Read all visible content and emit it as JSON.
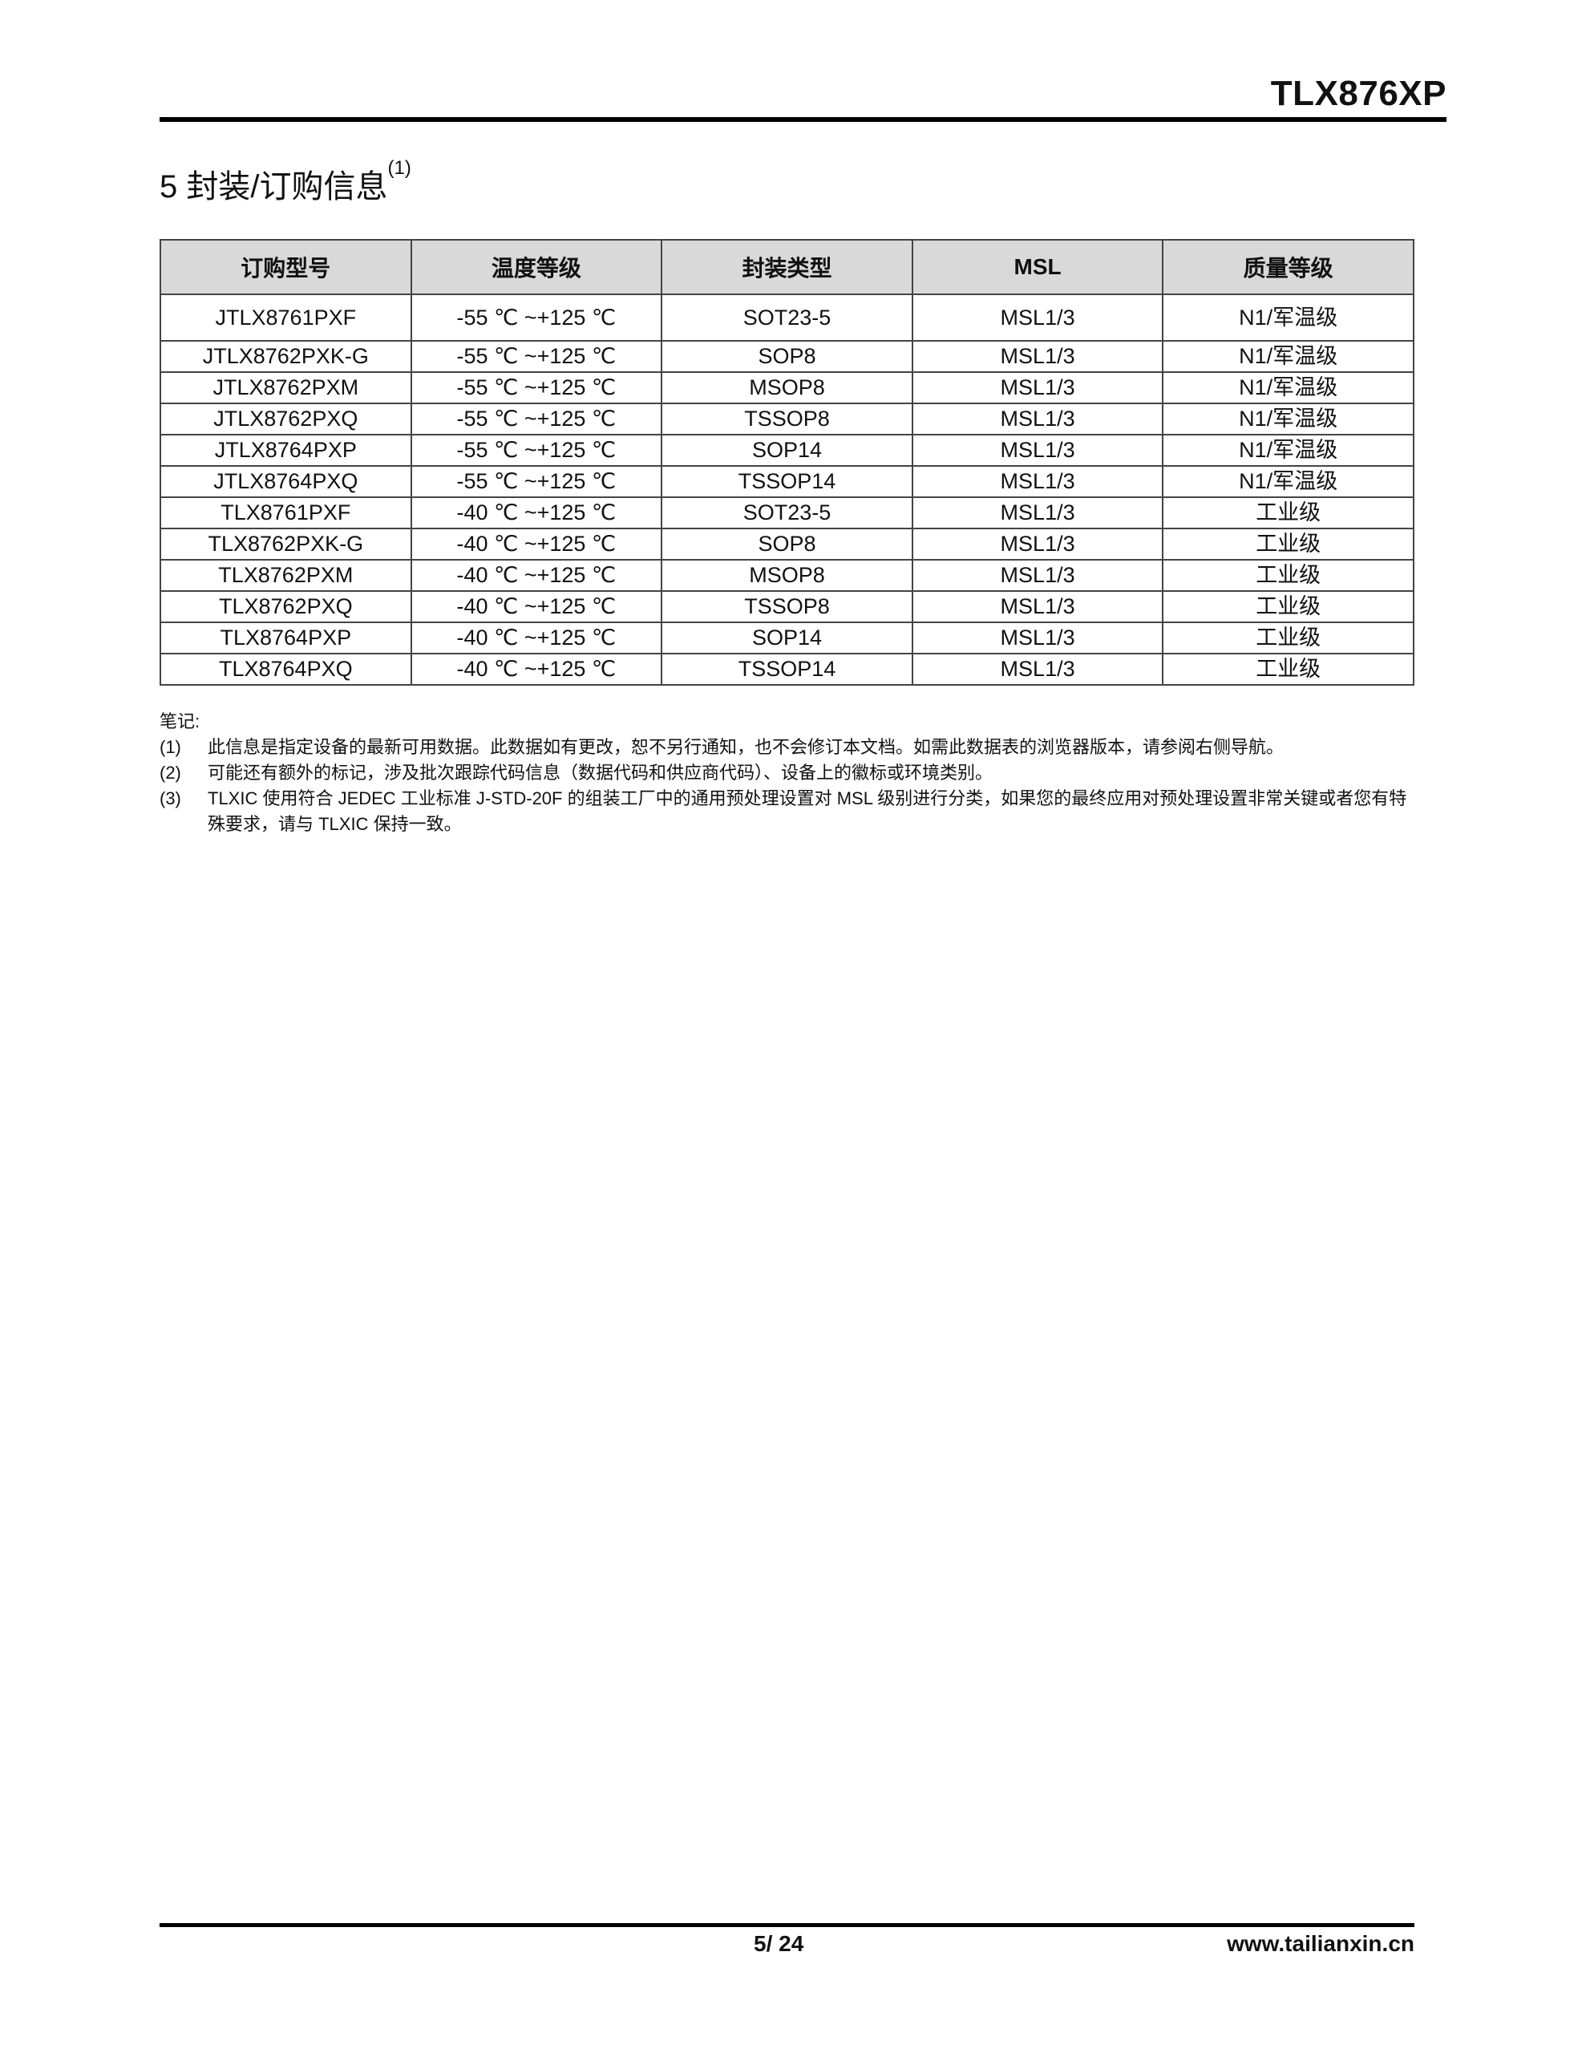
{
  "header": {
    "doc_code": "TLX876XP"
  },
  "section": {
    "title": "5 封装/订购信息",
    "title_note": "(1)"
  },
  "table": {
    "columns": [
      "订购型号",
      "温度等级",
      "封装类型",
      "MSL",
      "质量等级"
    ],
    "rows": [
      [
        "JTLX8761PXF",
        "-55 ℃ ~+125 ℃",
        "SOT23-5",
        "MSL1/3",
        "N1/军温级"
      ],
      [
        "JTLX8762PXK-G",
        "-55 ℃ ~+125 ℃",
        "SOP8",
        "MSL1/3",
        "N1/军温级"
      ],
      [
        "JTLX8762PXM",
        "-55 ℃ ~+125 ℃",
        "MSOP8",
        "MSL1/3",
        "N1/军温级"
      ],
      [
        "JTLX8762PXQ",
        "-55 ℃ ~+125 ℃",
        "TSSOP8",
        "MSL1/3",
        "N1/军温级"
      ],
      [
        "JTLX8764PXP",
        "-55 ℃ ~+125 ℃",
        "SOP14",
        "MSL1/3",
        "N1/军温级"
      ],
      [
        "JTLX8764PXQ",
        "-55 ℃ ~+125 ℃",
        "TSSOP14",
        "MSL1/3",
        "N1/军温级"
      ],
      [
        "TLX8761PXF",
        "-40 ℃ ~+125 ℃",
        "SOT23-5",
        "MSL1/3",
        "工业级"
      ],
      [
        "TLX8762PXK-G",
        "-40 ℃ ~+125 ℃",
        "SOP8",
        "MSL1/3",
        "工业级"
      ],
      [
        "TLX8762PXM",
        "-40 ℃ ~+125 ℃",
        "MSOP8",
        "MSL1/3",
        "工业级"
      ],
      [
        "TLX8762PXQ",
        "-40 ℃ ~+125 ℃",
        "TSSOP8",
        "MSL1/3",
        "工业级"
      ],
      [
        "TLX8764PXP",
        "-40 ℃ ~+125 ℃",
        "SOP14",
        "MSL1/3",
        "工业级"
      ],
      [
        "TLX8764PXQ",
        "-40 ℃ ~+125 ℃",
        "TSSOP14",
        "MSL1/3",
        "工业级"
      ]
    ]
  },
  "notes": {
    "heading": "笔记:",
    "items": [
      {
        "num": "(1)",
        "text": "此信息是指定设备的最新可用数据。此数据如有更改，恕不另行通知，也不会修订本文档。如需此数据表的浏览器版本，请参阅右侧导航。"
      },
      {
        "num": "(2)",
        "text": "可能还有额外的标记，涉及批次跟踪代码信息（数据代码和供应商代码）、设备上的徽标或环境类别。"
      },
      {
        "num": "(3)",
        "text": "TLXIC 使用符合 JEDEC 工业标准 J-STD-20F 的组装工厂中的通用预处理设置对 MSL 级别进行分类，如果您的最终应用对预处理设置非常关键或者您有特殊要求，请与 TLXIC 保持一致。"
      }
    ]
  },
  "footer": {
    "page": "5/ 24",
    "website": "www.tailianxin.cn"
  }
}
